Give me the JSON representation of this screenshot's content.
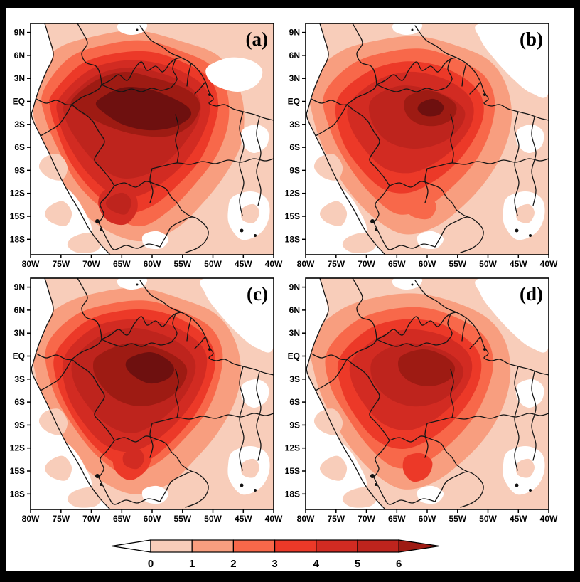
{
  "figure": {
    "background": "#ffffff",
    "frame_color": "#000000",
    "panels": [
      {
        "id": "a",
        "label": "(a)"
      },
      {
        "id": "b",
        "label": "(b)"
      },
      {
        "id": "c",
        "label": "(c)"
      },
      {
        "id": "d",
        "label": "(d)"
      }
    ],
    "axes": {
      "lat_ticks": [
        "9N",
        "6N",
        "3N",
        "EQ",
        "3S",
        "6S",
        "9S",
        "12S",
        "15S",
        "18S"
      ],
      "lon_ticks": [
        "80W",
        "75W",
        "70W",
        "65W",
        "60W",
        "55W",
        "50W",
        "45W",
        "40W"
      ]
    },
    "colorbar": {
      "tick_labels": [
        "0",
        "1",
        "2",
        "3",
        "4",
        "5",
        "6"
      ],
      "segment_colors": [
        "#F8CDBA",
        "#F89E7F",
        "#F8684A",
        "#EC3928",
        "#D22B22",
        "#BE241D"
      ],
      "left_arrow_color": "#FFFFFF",
      "right_arrow_color": "#9E1B13"
    }
  },
  "chart_data": {
    "type": "heatmap",
    "subtype": "filled-contour maps, 2x2 panels over northern South America (Amazon basin)",
    "panel_labels": [
      "(a)",
      "(b)",
      "(c)",
      "(d)"
    ],
    "lon_ticks": [
      "80W",
      "75W",
      "70W",
      "65W",
      "60W",
      "55W",
      "50W",
      "45W",
      "40W"
    ],
    "lat_ticks": [
      "9N",
      "6N",
      "3N",
      "EQ",
      "3S",
      "6S",
      "9S",
      "12S",
      "15S",
      "18S"
    ],
    "colorbar_levels": [
      0,
      1,
      2,
      3,
      4,
      5,
      6
    ],
    "colorbar_colors": [
      "#FFFFFF",
      "#F8CDBA",
      "#F89E7F",
      "#F8684A",
      "#EC3928",
      "#D22B22",
      "#BE241D",
      "#9E1B13"
    ],
    "extra_dark_core_color": "#6E100F",
    "legend_position": "bottom-center",
    "panel_max_intensity": {
      "a": "widespread >6 with large dark core ~63W-53W, 1S-5S",
      "b": ">6 small patch near 60W, 2S",
      "c": ">6 moderate patch near 60W, 2S",
      "d": "5-6 band near 62W-57W, 1S-4S; no extreme core"
    }
  }
}
